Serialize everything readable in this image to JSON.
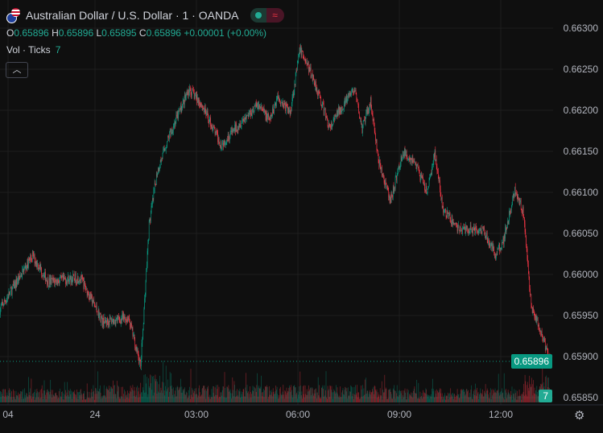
{
  "header": {
    "title": "Australian Dollar / U.S. Dollar · 1 · OANDA",
    "market_status_icon": "market-open-dot-icon",
    "toggle_icon": "approx-wave-icon"
  },
  "ohlc": {
    "o_label": "O",
    "o": "0.65896",
    "h_label": "H",
    "h": "0.65896",
    "l_label": "L",
    "l": "0.65895",
    "c_label": "C",
    "c": "0.65896",
    "change": "+0.00001 (+0.00%)"
  },
  "volume_legend": {
    "label": "Vol · Ticks",
    "value": "7"
  },
  "collapse_icon": "chevron-up-icon",
  "colors": {
    "up": "#089981",
    "down": "#f23645",
    "background": "#0f0f0f",
    "grid": "#1e1e1e"
  },
  "chart_data": {
    "type": "candlestick",
    "interval": "1 minute",
    "ylim": [
      0.6585,
      0.6631
    ],
    "price_ticks": [
      "0.66300",
      "0.66250",
      "0.66200",
      "0.66150",
      "0.66100",
      "0.66050",
      "0.66000",
      "0.65950",
      "0.65900",
      "0.65850"
    ],
    "time_ticks": [
      "04",
      "24",
      "03:00",
      "06:00",
      "09:00",
      "12:00"
    ],
    "grid": true,
    "price_path": [
      [
        "21:11",
        0.65957
      ],
      [
        "22:09",
        0.66023
      ],
      [
        "22:37",
        0.65991
      ],
      [
        "23:34",
        0.65996
      ],
      [
        "00:14",
        0.65942
      ],
      [
        "01:00",
        0.65947
      ],
      [
        "01:21",
        0.65888
      ],
      [
        "01:36",
        0.6606
      ],
      [
        "01:50",
        0.66124
      ],
      [
        "02:11",
        0.66168
      ],
      [
        "02:47",
        0.66226
      ],
      [
        "03:09",
        0.66207
      ],
      [
        "03:44",
        0.66158
      ],
      [
        "04:20",
        0.66187
      ],
      [
        "04:49",
        0.66207
      ],
      [
        "05:10",
        0.66187
      ],
      [
        "05:24",
        0.66217
      ],
      [
        "05:46",
        0.66197
      ],
      [
        "06:04",
        0.66275
      ],
      [
        "06:29",
        0.66236
      ],
      [
        "06:57",
        0.66177
      ],
      [
        "07:11",
        0.66197
      ],
      [
        "07:40",
        0.66226
      ],
      [
        "07:54",
        0.66177
      ],
      [
        "08:09",
        0.66211
      ],
      [
        "08:23",
        0.66138
      ],
      [
        "08:44",
        0.66089
      ],
      [
        "09:06",
        0.66148
      ],
      [
        "09:27",
        0.66138
      ],
      [
        "09:49",
        0.66099
      ],
      [
        "10:03",
        0.66148
      ],
      [
        "10:17",
        0.66079
      ],
      [
        "10:46",
        0.66055
      ],
      [
        "11:29",
        0.66055
      ],
      [
        "11:50",
        0.66025
      ],
      [
        "12:04",
        0.6604
      ],
      [
        "12:26",
        0.66104
      ],
      [
        "12:40",
        0.66075
      ],
      [
        "12:54",
        0.65962
      ],
      [
        "13:09",
        0.65933
      ],
      [
        "13:27",
        0.65896
      ]
    ],
    "last_price": "0.65896",
    "last_volume": "7"
  },
  "settings_icon": "gear-icon"
}
